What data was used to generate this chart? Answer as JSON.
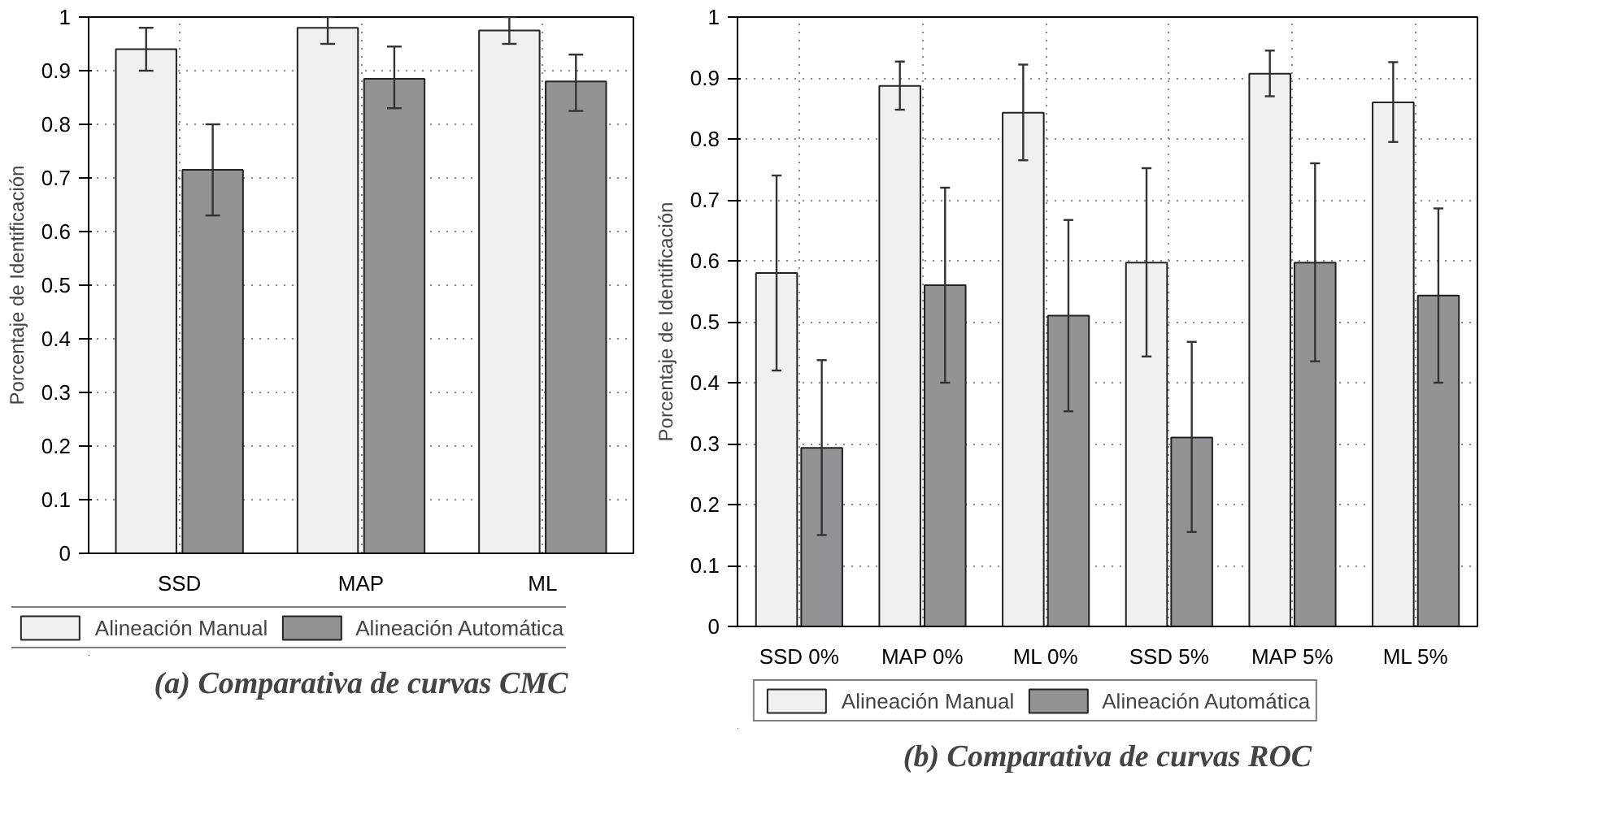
{
  "chart_data": [
    {
      "type": "bar",
      "title": "(a) Comparativa de curvas CMC",
      "ylabel": "Porcentaje de Identificación",
      "categories": [
        "SSD",
        "MAP",
        "ML"
      ],
      "ylim": [
        0,
        1
      ],
      "yticks": [
        0,
        0.1,
        0.2,
        0.3,
        0.4,
        0.5,
        0.6,
        0.7,
        0.8,
        0.9,
        1
      ],
      "grid": true,
      "legend": "bottom",
      "series": [
        {
          "name": "Alineación Manual",
          "color": "#f0f0f0",
          "values": [
            0.94,
            0.98,
            0.975
          ],
          "errors": [
            [
              0.9,
              0.98
            ],
            [
              0.95,
              1.0
            ],
            [
              0.95,
              1.0
            ]
          ]
        },
        {
          "name": "Alineación Automática",
          "color": "#929396",
          "values": [
            0.715,
            0.885,
            0.88
          ],
          "errors": [
            [
              0.63,
              0.8
            ],
            [
              0.83,
              0.945
            ],
            [
              0.825,
              0.93
            ]
          ]
        }
      ]
    },
    {
      "type": "bar",
      "title": "(b) Comparativa de curvas ROC",
      "ylabel": "Porcentaje de Identificación",
      "categories": [
        "SSD 0%",
        "MAP 0%",
        "ML 0%",
        "SSD 5%",
        "MAP 5%",
        "ML 5%"
      ],
      "ylim": [
        0,
        1
      ],
      "yticks": [
        0,
        0.1,
        0.2,
        0.3,
        0.4,
        0.5,
        0.6,
        0.7,
        0.8,
        0.9,
        1
      ],
      "grid": true,
      "legend": "bottom",
      "series": [
        {
          "name": "Alineación Manual",
          "color": "#f0f0f0",
          "values": [
            0.58,
            0.887,
            0.843,
            0.597,
            0.907,
            0.86
          ],
          "errors": [
            [
              0.42,
              0.74
            ],
            [
              0.848,
              0.927
            ],
            [
              0.765,
              0.922
            ],
            [
              0.443,
              0.752
            ],
            [
              0.87,
              0.945
            ],
            [
              0.795,
              0.926
            ]
          ]
        },
        {
          "name": "Alineación Automática",
          "color": "#929396",
          "values": [
            0.293,
            0.56,
            0.51,
            0.31,
            0.597,
            0.543
          ],
          "errors": [
            [
              0.15,
              0.437
            ],
            [
              0.4,
              0.72
            ],
            [
              0.353,
              0.667
            ],
            [
              0.155,
              0.467
            ],
            [
              0.435,
              0.76
            ],
            [
              0.4,
              0.686
            ]
          ]
        }
      ]
    }
  ]
}
